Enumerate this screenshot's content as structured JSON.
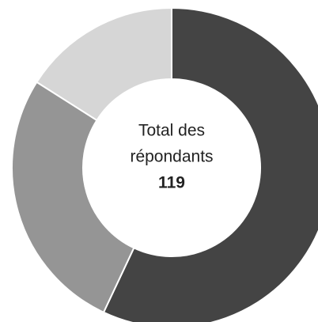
{
  "chart_data": {
    "type": "donut",
    "values": [
      57,
      27,
      16
    ],
    "colors": [
      "#444444",
      "#959595",
      "#d6d6d6"
    ],
    "center_label": [
      "Total des",
      "répondants"
    ],
    "total": 119
  }
}
